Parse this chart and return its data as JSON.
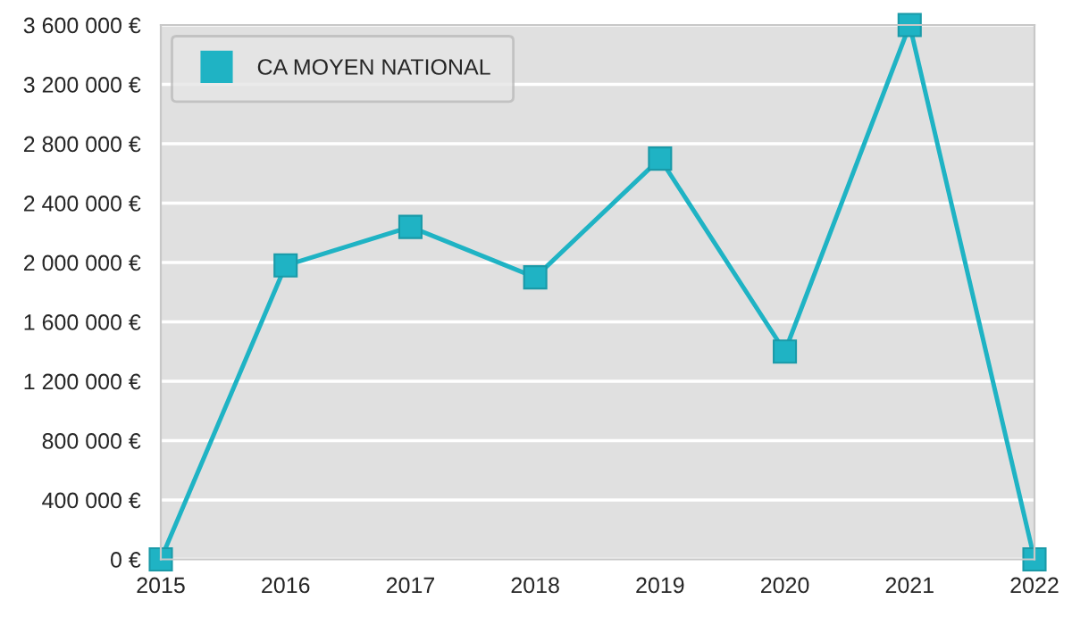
{
  "chart_data": {
    "type": "line",
    "categories": [
      "2015",
      "2016",
      "2017",
      "2018",
      "2019",
      "2020",
      "2021",
      "2022"
    ],
    "series": [
      {
        "name": "CA MOYEN NATIONAL",
        "color": "#1fb3c4",
        "values": [
          0,
          1980000,
          2240000,
          1900000,
          2700000,
          1400000,
          3600000,
          0
        ]
      }
    ],
    "ylim": [
      0,
      3600000
    ],
    "yticks": [
      {
        "value": 0,
        "label": "0 €"
      },
      {
        "value": 400000,
        "label": "400 000 €"
      },
      {
        "value": 800000,
        "label": "800 000 €"
      },
      {
        "value": 1200000,
        "label": "1 200 000 €"
      },
      {
        "value": 1600000,
        "label": "1 600 000 €"
      },
      {
        "value": 2000000,
        "label": "2 000 000 €"
      },
      {
        "value": 2400000,
        "label": "2 400 000 €"
      },
      {
        "value": 2800000,
        "label": "2 800 000 €"
      },
      {
        "value": 3200000,
        "label": "3 200 000 €"
      },
      {
        "value": 3600000,
        "label": "3 600 000 €"
      }
    ],
    "grid": "y",
    "legend": "top left",
    "marker": "square",
    "line_style": "solid"
  }
}
